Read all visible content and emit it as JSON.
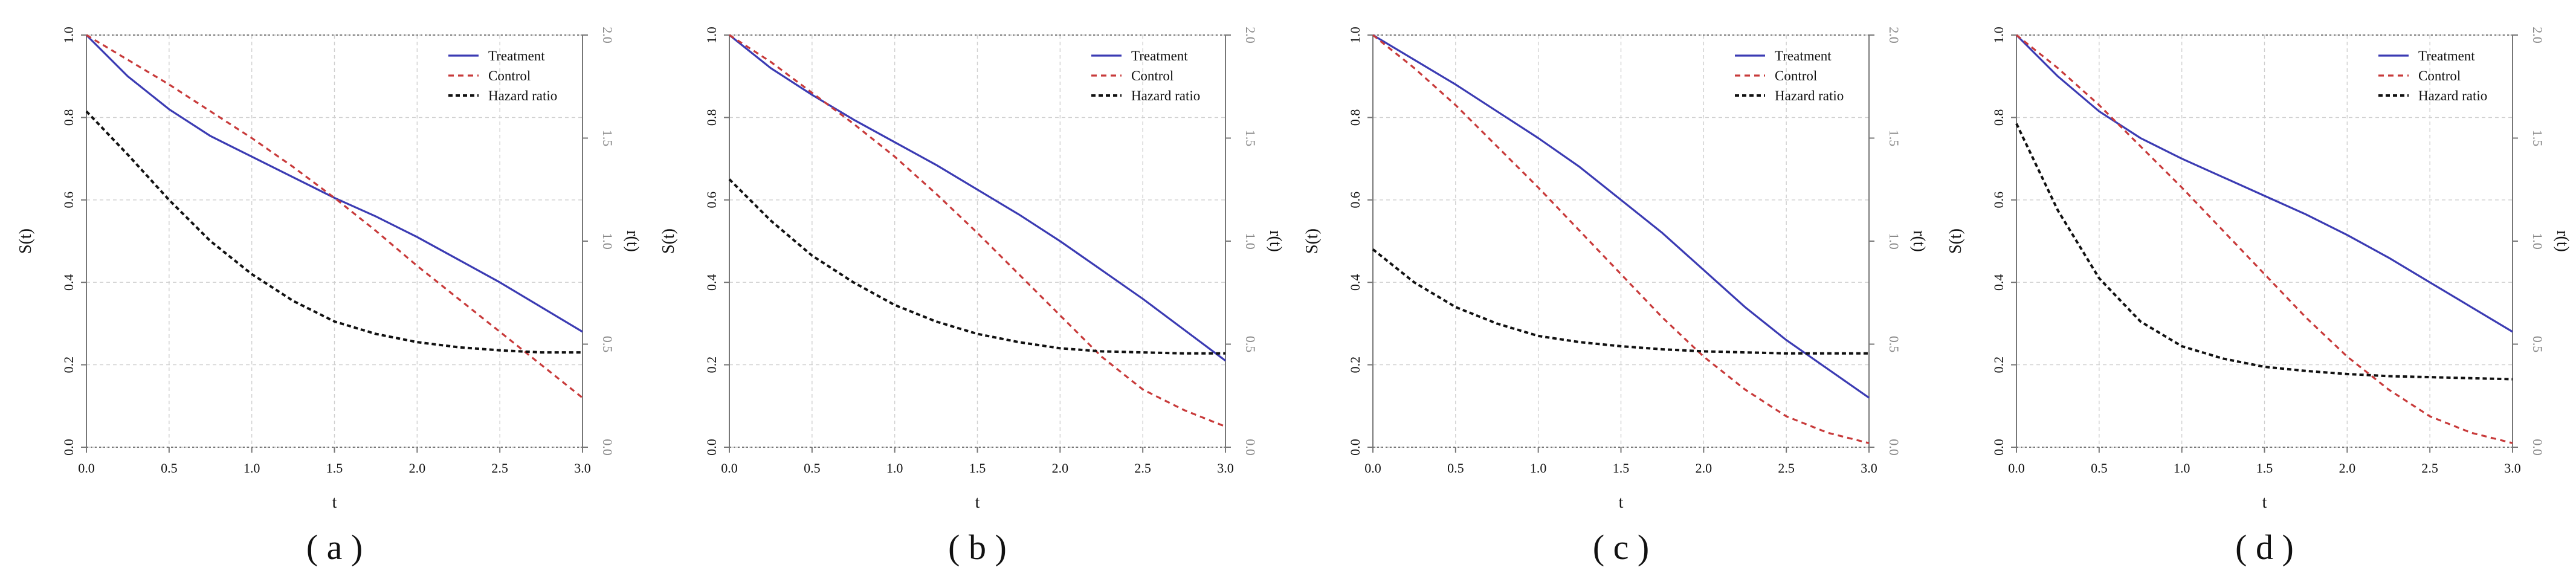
{
  "figure": {
    "colors": {
      "treatment": "#3b3bb3",
      "control": "#c83a3a",
      "hazard": "#111111",
      "grid": "#cfcfcf",
      "frame": "#777777"
    },
    "legend": {
      "treatment": "Treatment",
      "control": "Control",
      "hazard": "Hazard ratio"
    }
  },
  "chart_data": [
    {
      "type": "line",
      "panel_label": "( a )",
      "xlabel": "t",
      "ylabel": "S(t)",
      "y2label": "r(t)",
      "xlim": [
        0,
        3
      ],
      "ylim": [
        0,
        1
      ],
      "y2lim": [
        0,
        2
      ],
      "xticks": [
        "0.0",
        "0.5",
        "1.0",
        "1.5",
        "2.0",
        "2.5",
        "3.0"
      ],
      "yticks": [
        "0.0",
        "0.2",
        "0.4",
        "0.6",
        "0.8",
        "1.0"
      ],
      "y2ticks": [
        "0.0",
        "0.5",
        "1.0",
        "1.5",
        "2.0"
      ],
      "legend_position": "top-right",
      "grid": true,
      "series": [
        {
          "name": "Treatment",
          "axis": "left",
          "x": [
            0,
            0.25,
            0.5,
            0.75,
            1.0,
            1.25,
            1.5,
            1.75,
            2.0,
            2.25,
            2.5,
            2.75,
            3.0
          ],
          "values": [
            1.0,
            0.9,
            0.82,
            0.755,
            0.705,
            0.655,
            0.605,
            0.56,
            0.51,
            0.455,
            0.4,
            0.34,
            0.28
          ]
        },
        {
          "name": "Control",
          "axis": "left",
          "x": [
            0,
            0.25,
            0.5,
            0.75,
            1.0,
            1.25,
            1.5,
            1.75,
            2.0,
            2.25,
            2.5,
            2.75,
            3.0
          ],
          "values": [
            1.0,
            0.94,
            0.88,
            0.815,
            0.75,
            0.68,
            0.605,
            0.525,
            0.44,
            0.36,
            0.28,
            0.2,
            0.12
          ]
        },
        {
          "name": "Hazard ratio",
          "axis": "right",
          "x": [
            0,
            0.25,
            0.5,
            0.75,
            1.0,
            1.25,
            1.5,
            1.75,
            2.0,
            2.25,
            2.5,
            2.75,
            3.0
          ],
          "values": [
            1.63,
            1.42,
            1.2,
            1.0,
            0.84,
            0.71,
            0.61,
            0.55,
            0.51,
            0.485,
            0.47,
            0.46,
            0.46
          ]
        }
      ]
    },
    {
      "type": "line",
      "panel_label": "( b )",
      "xlabel": "t",
      "ylabel": "S(t)",
      "y2label": "r(t)",
      "xlim": [
        0,
        3
      ],
      "ylim": [
        0,
        1
      ],
      "y2lim": [
        0,
        2
      ],
      "xticks": [
        "0.0",
        "0.5",
        "1.0",
        "1.5",
        "2.0",
        "2.5",
        "3.0"
      ],
      "yticks": [
        "0.0",
        "0.2",
        "0.4",
        "0.6",
        "0.8",
        "1.0"
      ],
      "y2ticks": [
        "0.0",
        "0.5",
        "1.0",
        "1.5",
        "2.0"
      ],
      "legend_position": "top-right",
      "grid": true,
      "series": [
        {
          "name": "Treatment",
          "axis": "left",
          "x": [
            0,
            0.25,
            0.5,
            0.75,
            1.0,
            1.25,
            1.5,
            1.75,
            2.0,
            2.25,
            2.5,
            2.75,
            3.0
          ],
          "values": [
            1.0,
            0.92,
            0.855,
            0.795,
            0.74,
            0.685,
            0.625,
            0.565,
            0.5,
            0.43,
            0.36,
            0.285,
            0.21
          ]
        },
        {
          "name": "Control",
          "axis": "left",
          "x": [
            0,
            0.25,
            0.5,
            0.75,
            1.0,
            1.25,
            1.5,
            1.75,
            2.0,
            2.25,
            2.5,
            2.75,
            3.0
          ],
          "values": [
            1.0,
            0.935,
            0.86,
            0.785,
            0.705,
            0.615,
            0.52,
            0.42,
            0.32,
            0.22,
            0.14,
            0.09,
            0.05
          ]
        },
        {
          "name": "Hazard ratio",
          "axis": "right",
          "x": [
            0,
            0.25,
            0.5,
            0.75,
            1.0,
            1.25,
            1.5,
            1.75,
            2.0,
            2.25,
            2.5,
            2.75,
            3.0
          ],
          "values": [
            1.3,
            1.1,
            0.93,
            0.8,
            0.69,
            0.61,
            0.55,
            0.51,
            0.48,
            0.465,
            0.46,
            0.455,
            0.455
          ]
        }
      ]
    },
    {
      "type": "line",
      "panel_label": "( c )",
      "xlabel": "t",
      "ylabel": "S(t)",
      "y2label": "r(t)",
      "xlim": [
        0,
        3
      ],
      "ylim": [
        0,
        1
      ],
      "y2lim": [
        0,
        2
      ],
      "xticks": [
        "0.0",
        "0.5",
        "1.0",
        "1.5",
        "2.0",
        "2.5",
        "3.0"
      ],
      "yticks": [
        "0.0",
        "0.2",
        "0.4",
        "0.6",
        "0.8",
        "1.0"
      ],
      "y2ticks": [
        "0.0",
        "0.5",
        "1.0",
        "1.5",
        "2.0"
      ],
      "legend_position": "top-right",
      "grid": true,
      "series": [
        {
          "name": "Treatment",
          "axis": "left",
          "x": [
            0,
            0.25,
            0.5,
            0.75,
            1.0,
            1.25,
            1.5,
            1.75,
            2.0,
            2.25,
            2.5,
            2.75,
            3.0
          ],
          "values": [
            1.0,
            0.94,
            0.88,
            0.815,
            0.75,
            0.68,
            0.6,
            0.52,
            0.43,
            0.34,
            0.26,
            0.19,
            0.12
          ]
        },
        {
          "name": "Control",
          "axis": "left",
          "x": [
            0,
            0.25,
            0.5,
            0.75,
            1.0,
            1.25,
            1.5,
            1.75,
            2.0,
            2.25,
            2.5,
            2.75,
            3.0
          ],
          "values": [
            1.0,
            0.92,
            0.83,
            0.73,
            0.63,
            0.525,
            0.42,
            0.315,
            0.22,
            0.14,
            0.075,
            0.035,
            0.01
          ]
        },
        {
          "name": "Hazard ratio",
          "axis": "right",
          "x": [
            0,
            0.25,
            0.5,
            0.75,
            1.0,
            1.25,
            1.5,
            1.75,
            2.0,
            2.25,
            2.5,
            2.75,
            3.0
          ],
          "values": [
            0.96,
            0.8,
            0.68,
            0.6,
            0.54,
            0.51,
            0.49,
            0.475,
            0.465,
            0.46,
            0.455,
            0.455,
            0.455
          ]
        }
      ]
    },
    {
      "type": "line",
      "panel_label": "( d )",
      "xlabel": "t",
      "ylabel": "S(t)",
      "y2label": "r(t)",
      "xlim": [
        0,
        3
      ],
      "ylim": [
        0,
        1
      ],
      "y2lim": [
        0,
        2
      ],
      "xticks": [
        "0.0",
        "0.5",
        "1.0",
        "1.5",
        "2.0",
        "2.5",
        "3.0"
      ],
      "yticks": [
        "0.0",
        "0.2",
        "0.4",
        "0.6",
        "0.8",
        "1.0"
      ],
      "y2ticks": [
        "0.0",
        "0.5",
        "1.0",
        "1.5",
        "2.0"
      ],
      "legend_position": "top-right",
      "grid": true,
      "series": [
        {
          "name": "Treatment",
          "axis": "left",
          "x": [
            0,
            0.25,
            0.5,
            0.75,
            1.0,
            1.25,
            1.5,
            1.75,
            2.0,
            2.25,
            2.5,
            2.75,
            3.0
          ],
          "values": [
            1.0,
            0.9,
            0.815,
            0.75,
            0.7,
            0.655,
            0.61,
            0.565,
            0.515,
            0.46,
            0.4,
            0.34,
            0.28
          ]
        },
        {
          "name": "Control",
          "axis": "left",
          "x": [
            0,
            0.25,
            0.5,
            0.75,
            1.0,
            1.25,
            1.5,
            1.75,
            2.0,
            2.25,
            2.5,
            2.75,
            3.0
          ],
          "values": [
            1.0,
            0.92,
            0.83,
            0.73,
            0.63,
            0.525,
            0.42,
            0.315,
            0.22,
            0.14,
            0.075,
            0.035,
            0.01
          ]
        },
        {
          "name": "Hazard ratio",
          "axis": "right",
          "x": [
            0,
            0.25,
            0.5,
            0.75,
            1.0,
            1.25,
            1.5,
            1.75,
            2.0,
            2.25,
            2.5,
            2.75,
            3.0
          ],
          "values": [
            1.57,
            1.15,
            0.82,
            0.61,
            0.49,
            0.43,
            0.39,
            0.37,
            0.355,
            0.345,
            0.34,
            0.335,
            0.33
          ]
        }
      ]
    }
  ]
}
